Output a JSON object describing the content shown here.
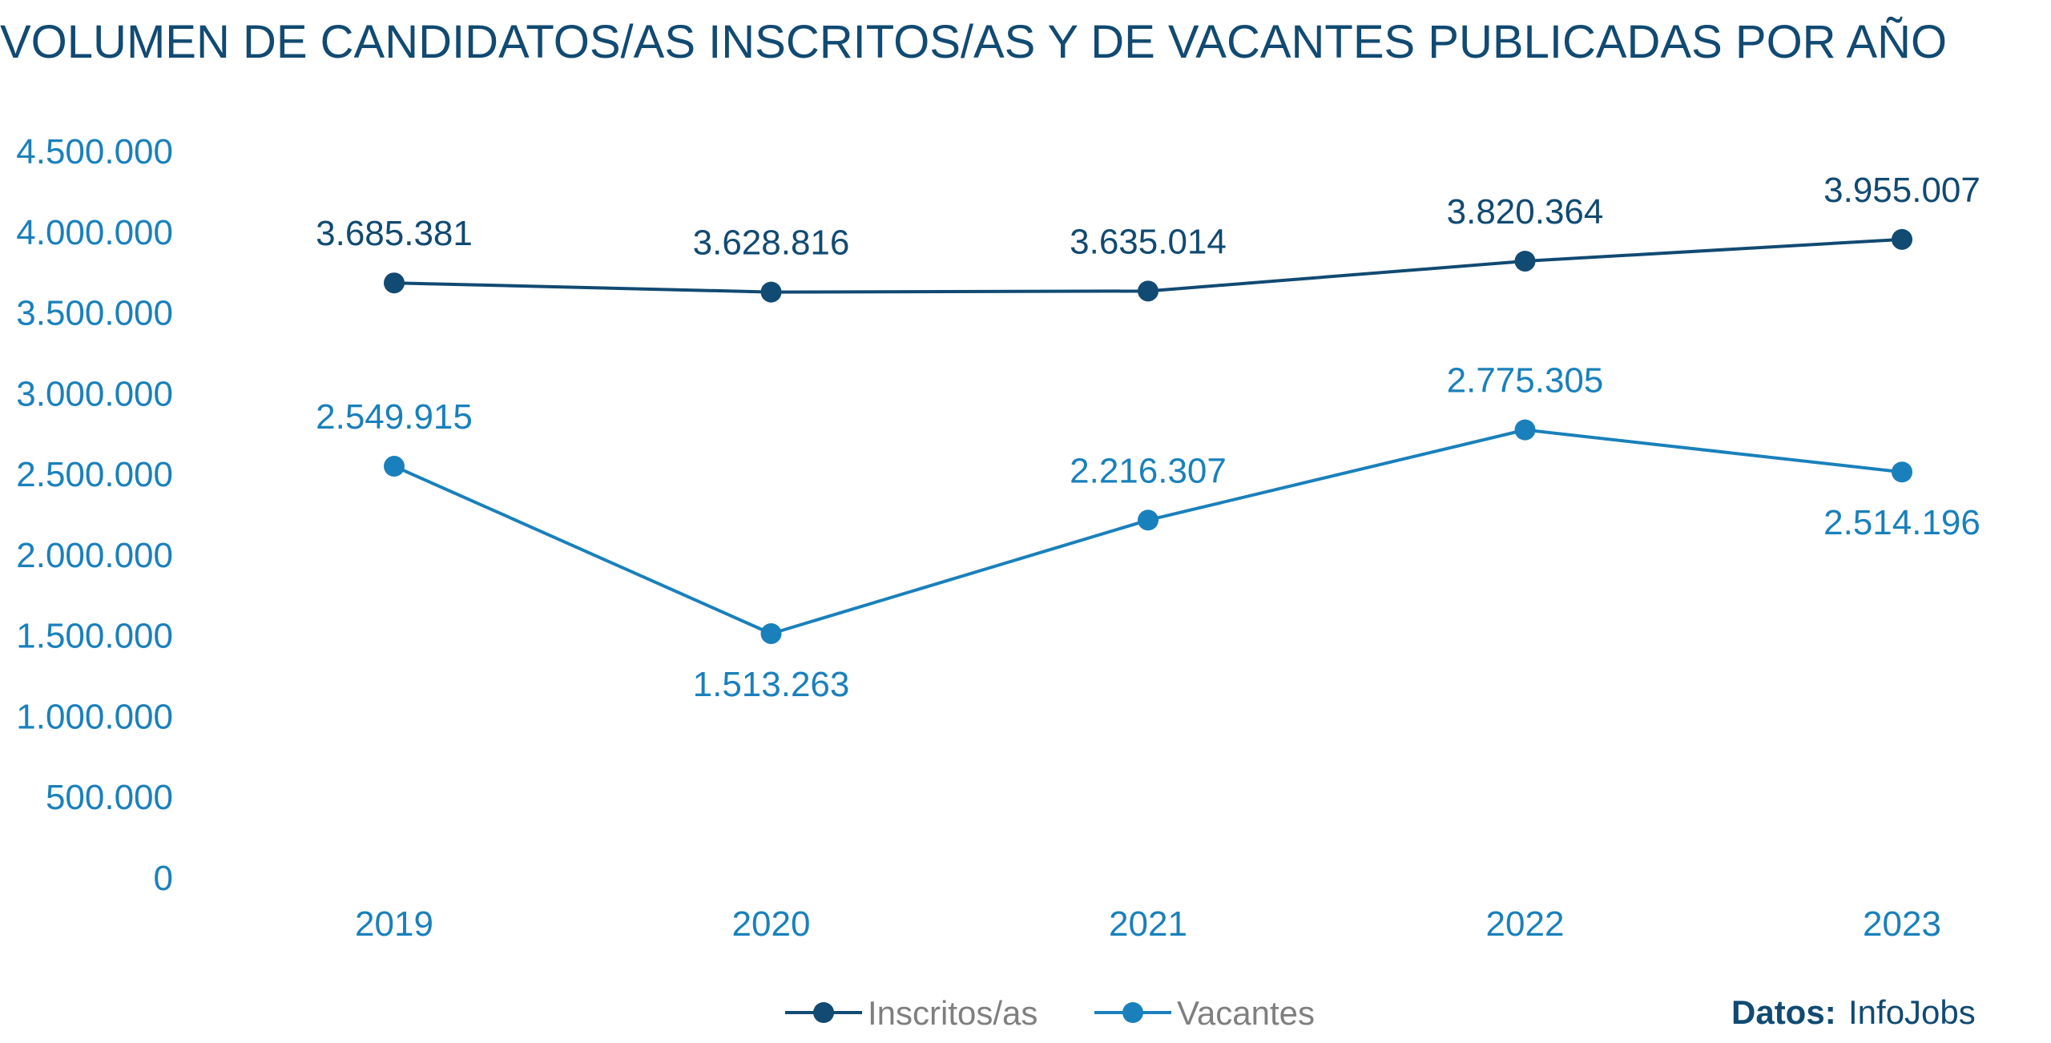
{
  "chart_data": {
    "type": "line",
    "title": "VOLUMEN DE CANDIDATOS/AS INSCRITOS/AS Y DE VACANTES PUBLICADAS POR AÑO",
    "categories": [
      "2019",
      "2020",
      "2021",
      "2022",
      "2023"
    ],
    "ylim": [
      0,
      4500000
    ],
    "yticks": [
      0,
      500000,
      1000000,
      1500000,
      2000000,
      2500000,
      3000000,
      3500000,
      4000000,
      4500000
    ],
    "ytick_labels": [
      "0",
      "500.000",
      "1.000.000",
      "1.500.000",
      "2.000.000",
      "2.500.000",
      "3.000.000",
      "3.500.000",
      "4.000.000",
      "4.500.000"
    ],
    "grid": false,
    "legend_position": "bottom-center",
    "series": [
      {
        "name": "Inscritos/as",
        "color": "#114a72",
        "values": [
          3685381,
          3628816,
          3635014,
          3820364,
          3955007
        ],
        "labels": [
          "3.685.381",
          "3.628.816",
          "3.635.014",
          "3.820.364",
          "3.955.007"
        ],
        "label_side": [
          "above",
          "above",
          "above",
          "above",
          "above"
        ]
      },
      {
        "name": "Vacantes",
        "color": "#1a80bb",
        "values": [
          2549915,
          1513263,
          2216307,
          2775305,
          2514196
        ],
        "labels": [
          "2.549.915",
          "1.513.263",
          "2.216.307",
          "2.775.305",
          "2.514.196"
        ],
        "label_side": [
          "above",
          "below",
          "above",
          "above",
          "below"
        ]
      }
    ]
  },
  "source": {
    "label": "Datos:",
    "value": "InfoJobs"
  }
}
